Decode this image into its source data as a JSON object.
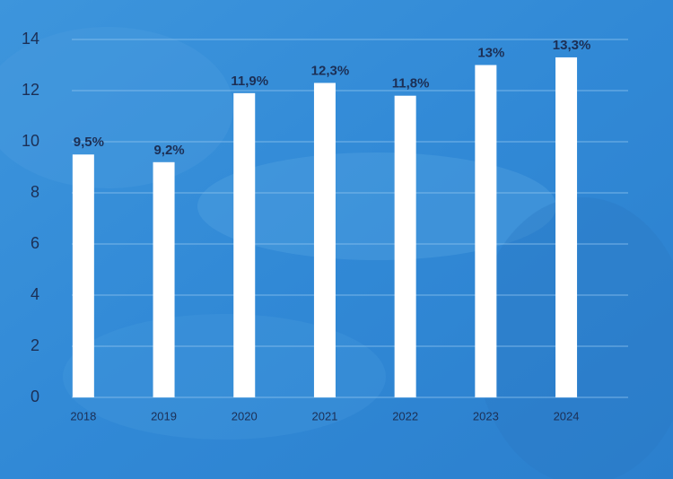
{
  "chart_data": {
    "type": "bar",
    "categories": [
      "2018",
      "2019",
      "2020",
      "2021",
      "2022",
      "2023",
      "2024"
    ],
    "values": [
      9.5,
      9.2,
      11.9,
      12.3,
      11.8,
      13,
      13.3
    ],
    "value_labels": [
      "9,5%",
      "9,2%",
      "11,9%",
      "12,3%",
      "11,8%",
      "13%",
      "13,3%"
    ],
    "color": "#ffffff",
    "ylim": [
      0,
      14
    ],
    "yticks": [
      0,
      2,
      4,
      6,
      8,
      10,
      12,
      14
    ],
    "grid": true
  }
}
